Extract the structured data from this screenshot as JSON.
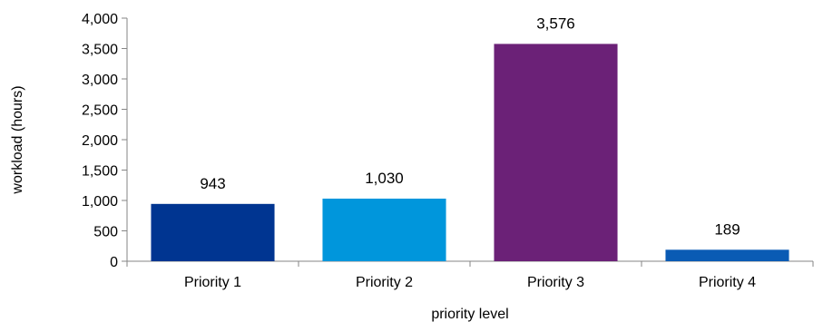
{
  "chart_data": {
    "type": "bar",
    "title": "",
    "xlabel": "priority level",
    "ylabel": "workload (hours)",
    "categories": [
      "Priority 1",
      "Priority 2",
      "Priority 3",
      "Priority 4"
    ],
    "values": [
      943,
      1030,
      3576,
      189
    ],
    "value_labels": [
      "943",
      "1,030",
      "3,576",
      "189"
    ],
    "bar_colors": [
      "#003591",
      "#0096DC",
      "#6B2177",
      "#0A5BB4"
    ],
    "ylim": [
      0,
      4000
    ],
    "yticks": [
      0,
      500,
      1000,
      1500,
      2000,
      2500,
      3000,
      3500,
      4000
    ],
    "ytick_labels": [
      "0",
      "500",
      "1,000",
      "1,500",
      "2,000",
      "2,500",
      "3,000",
      "3,500",
      "4,000"
    ],
    "grid": false,
    "legend": "none"
  }
}
